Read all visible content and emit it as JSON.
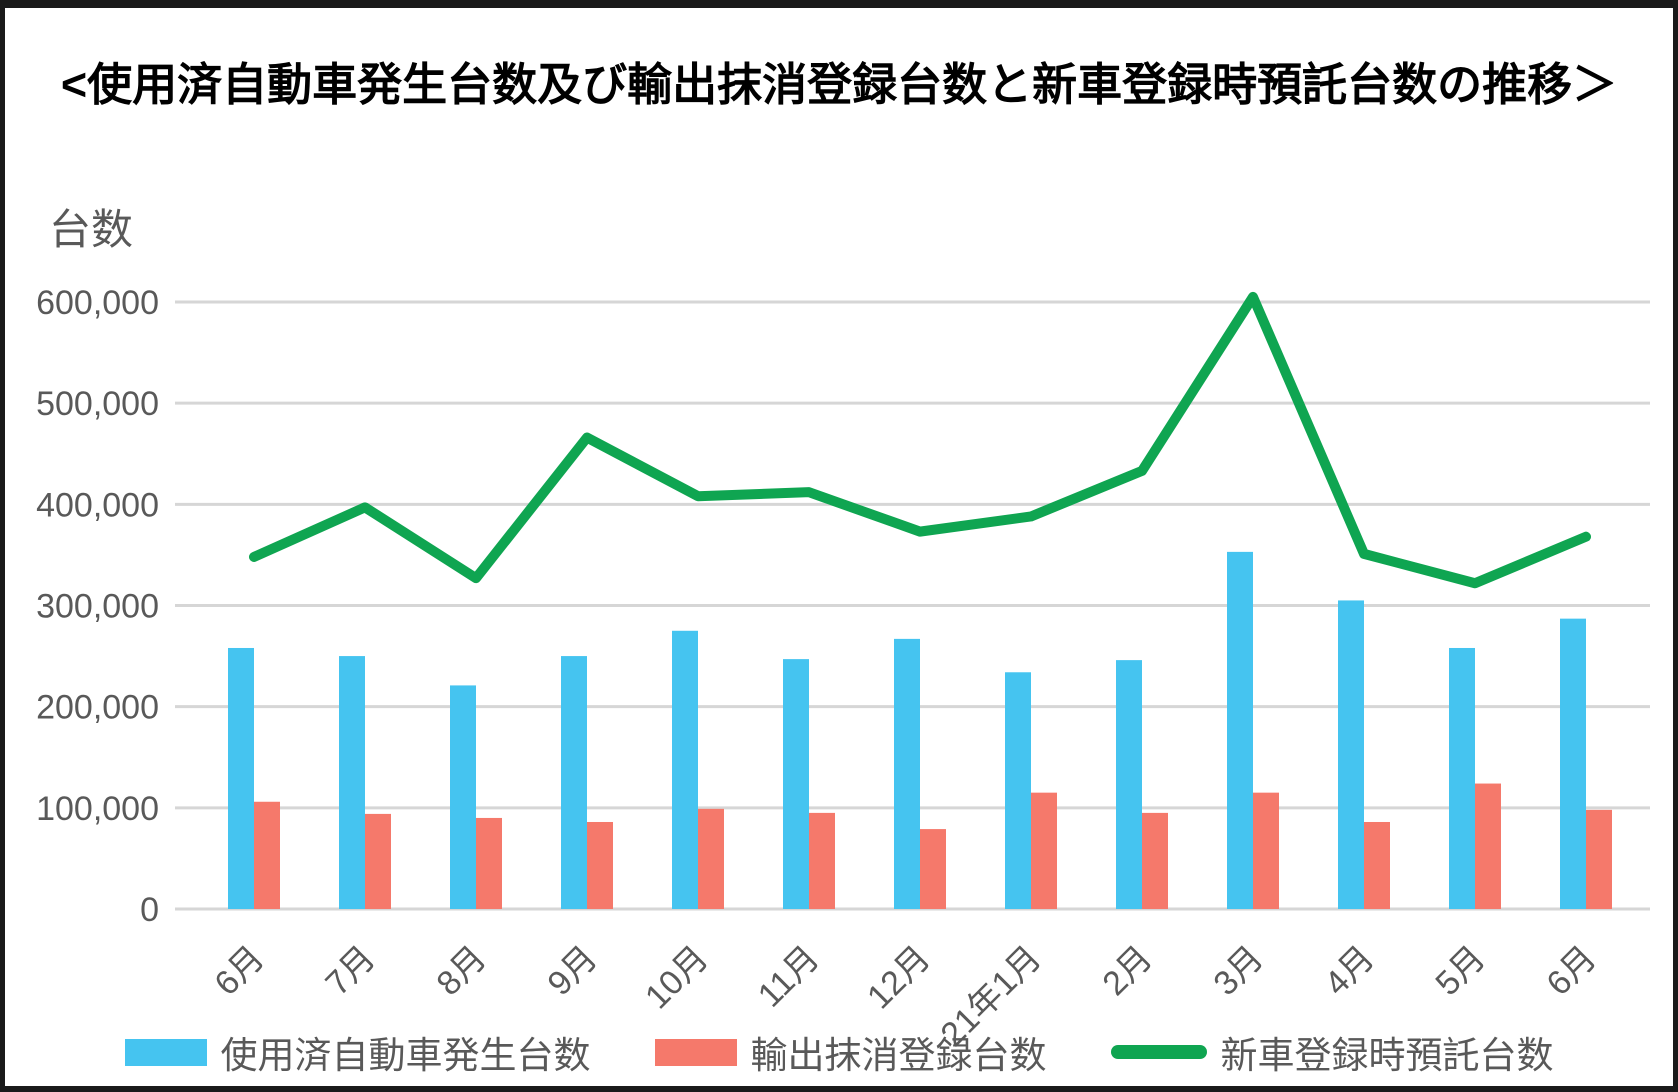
{
  "chart_data": {
    "type": "combo",
    "title": "<使用済自動車発生台数及び輸出抹消登録台数と新車登録時預託台数の推移＞",
    "ylabel": "台数",
    "xlabel": "",
    "ylim": [
      0,
      600000
    ],
    "ytick_step": 100000,
    "ytick_labels": [
      "0",
      "100,000",
      "200,000",
      "300,000",
      "400,000",
      "500,000",
      "600,000"
    ],
    "grid": true,
    "legend_position": "bottom",
    "categories": [
      "6月",
      "7月",
      "8月",
      "9月",
      "10月",
      "11月",
      "12月",
      "21年1月",
      "2月",
      "3月",
      "4月",
      "5月",
      "6月"
    ],
    "series": [
      {
        "name": "使用済自動車発生台数",
        "type": "bar",
        "color": "#45C4F0",
        "values": [
          258000,
          250000,
          221000,
          250000,
          275000,
          247000,
          267000,
          234000,
          246000,
          353000,
          305000,
          258000,
          287000
        ]
      },
      {
        "name": "輸出抹消登録台数",
        "type": "bar",
        "color": "#F5796B",
        "values": [
          106000,
          94000,
          90000,
          86000,
          99000,
          95000,
          79000,
          115000,
          95000,
          115000,
          86000,
          124000,
          98000
        ]
      },
      {
        "name": "新車登録時預託台数",
        "type": "line",
        "color": "#0FA551",
        "values": [
          348000,
          397000,
          327000,
          466000,
          408000,
          412000,
          373000,
          388000,
          433000,
          605000,
          351000,
          322000,
          368000
        ]
      }
    ],
    "colors": {
      "gridline": "#D6D6D6",
      "axis_text": "#595959",
      "title_text": "#000000",
      "frame": "#1a1a1a"
    }
  }
}
